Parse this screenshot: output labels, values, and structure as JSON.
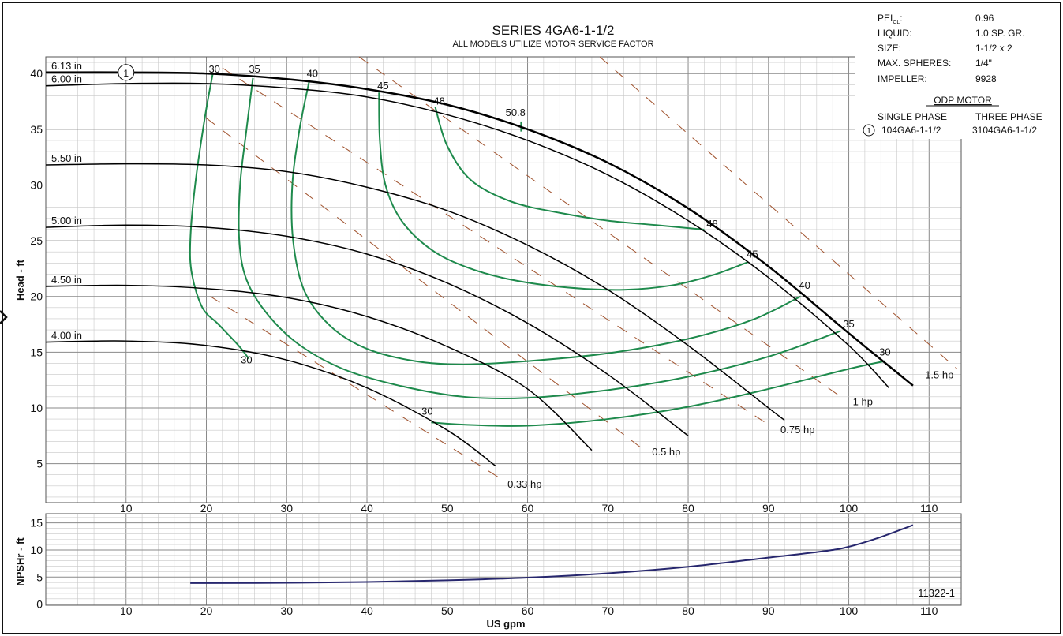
{
  "header": {
    "title": "SERIES 4GA6-1-1/2",
    "subtitle": "ALL MODELS UTILIZE MOTOR SERVICE FACTOR"
  },
  "specs": [
    {
      "label": "PEI",
      "label_sub": "CL",
      "label_suffix": ":",
      "value": "0.96"
    },
    {
      "label": "LIQUID:",
      "value": "1.0 SP. GR."
    },
    {
      "label": "SIZE:",
      "value": "1-1/2 x 2"
    },
    {
      "label": "MAX. SPHERES:",
      "value": "1/4\""
    },
    {
      "label": "IMPELLER:",
      "value": "9928"
    }
  ],
  "motor": {
    "heading": "ODP MOTOR",
    "single_label": "SINGLE PHASE",
    "three_label": "THREE PHASE",
    "marker": "1",
    "single_model": "104GA6-1-1/2",
    "three_model": "3104GA6-1-1/2"
  },
  "figure_number": "11322-1",
  "colors": {
    "head_curve": "#000000",
    "efficiency_curve": "#1e8a4c",
    "hp_line": "#a0522d",
    "npsh_curve": "#27276e",
    "grid_major": "#8a8a8a",
    "grid_minor": "#c8c8c8"
  },
  "chart_data": [
    {
      "type": "line",
      "title": "SERIES 4GA6-1-1/2",
      "xlabel": "US gpm",
      "ylabel": "Head - ft",
      "xlim": [
        0,
        114
      ],
      "ylim": [
        1.5,
        41.5
      ],
      "grid": true,
      "x_ticks": [
        10,
        20,
        30,
        40,
        50,
        60,
        70,
        80,
        90,
        100,
        110
      ],
      "y_ticks": [
        5,
        10,
        15,
        20,
        25,
        30,
        35,
        40
      ],
      "series": [
        {
          "name": "6.13 in",
          "kind": "head",
          "bold": true,
          "marker_label": "1",
          "marker_x": 10,
          "x": [
            0,
            10,
            20,
            30,
            40,
            50,
            60,
            70,
            80,
            90,
            100,
            108
          ],
          "y": [
            40.1,
            40.1,
            40.0,
            39.5,
            38.6,
            37.2,
            35.0,
            32.0,
            27.9,
            22.7,
            16.7,
            12.0
          ]
        },
        {
          "name": "6.00 in",
          "kind": "head",
          "x": [
            0,
            10,
            20,
            30,
            40,
            50,
            60,
            70,
            80,
            90,
            100,
            105
          ],
          "y": [
            38.9,
            39.1,
            39.1,
            38.7,
            37.9,
            36.3,
            34.0,
            30.9,
            26.8,
            21.7,
            15.6,
            11.8
          ]
        },
        {
          "name": "5.50 in",
          "kind": "head",
          "x": [
            0,
            10,
            20,
            30,
            40,
            50,
            60,
            70,
            80,
            90,
            92
          ],
          "y": [
            31.8,
            31.9,
            31.8,
            31.2,
            29.8,
            27.7,
            24.6,
            20.6,
            15.6,
            10.0,
            8.9
          ]
        },
        {
          "name": "5.00 in",
          "kind": "head",
          "x": [
            0,
            10,
            20,
            30,
            40,
            50,
            60,
            70,
            80
          ],
          "y": [
            26.2,
            26.4,
            26.2,
            25.4,
            23.8,
            21.2,
            17.6,
            13.0,
            7.5
          ]
        },
        {
          "name": "4.50 in",
          "kind": "head",
          "x": [
            0,
            10,
            20,
            30,
            40,
            50,
            60,
            68
          ],
          "y": [
            20.9,
            21.0,
            20.7,
            19.9,
            18.2,
            15.5,
            11.7,
            6.2
          ]
        },
        {
          "name": "4.00 in",
          "kind": "head",
          "x": [
            0,
            10,
            20,
            30,
            40,
            50,
            56
          ],
          "y": [
            15.9,
            16.0,
            15.6,
            14.3,
            11.8,
            8.0,
            4.8
          ]
        },
        {
          "name": "30",
          "kind": "efficiency",
          "label_points": [
            [
              21,
              40.1
            ],
            [
              25,
              14.0
            ]
          ],
          "x": [
            20.8,
            19.8,
            18.6,
            18.0,
            18.2,
            19.5,
            21.5,
            24.0,
            25.3
          ],
          "y": [
            40.0,
            36.0,
            30.0,
            25.0,
            22.0,
            19.0,
            17.5,
            15.6,
            14.4
          ]
        },
        {
          "name": "35",
          "kind": "efficiency",
          "label_points": [
            [
              26,
              40.1
            ],
            [
              100,
              17.2
            ]
          ],
          "x": [
            25.8,
            25.0,
            24.2,
            24.1,
            25.0,
            27.5,
            31.5,
            37.0,
            44.0,
            52.0,
            60.0,
            70.0,
            80.0,
            90.0,
            99.0
          ],
          "y": [
            39.6,
            35.0,
            30.0,
            25.0,
            21.5,
            18.5,
            15.7,
            13.5,
            12.0,
            11.0,
            10.9,
            11.6,
            12.8,
            14.6,
            16.9
          ]
        },
        {
          "name": "40",
          "kind": "efficiency",
          "label_points": [
            [
              33.2,
              39.7
            ],
            [
              94.5,
              20.7
            ]
          ],
          "x": [
            32.8,
            31.6,
            30.7,
            30.8,
            32.2,
            35.5,
            40.0,
            46.0,
            52.0,
            60.0,
            70.0,
            80.0,
            88.0,
            94.0
          ],
          "y": [
            39.3,
            35.0,
            30.0,
            25.0,
            20.5,
            17.3,
            15.3,
            14.2,
            13.9,
            14.2,
            14.9,
            16.2,
            17.9,
            20.0
          ]
        },
        {
          "name": "45",
          "kind": "efficiency",
          "label_points": [
            [
              42,
              38.6
            ],
            [
              88,
              23.5
            ]
          ],
          "x": [
            41.5,
            41.6,
            42.3,
            44.3,
            48.0,
            52.5,
            58.0,
            65.0,
            72.0,
            78.0,
            83.0,
            87.5
          ],
          "y": [
            38.3,
            34.0,
            30.0,
            26.8,
            24.2,
            22.6,
            21.5,
            20.8,
            20.6,
            21.0,
            21.9,
            23.1
          ]
        },
        {
          "name": "48",
          "kind": "efficiency",
          "label_points": [
            [
              49,
              37.2
            ],
            [
              83,
              26.2
            ]
          ],
          "x": [
            48.5,
            50.0,
            53.0,
            58.0,
            64.0,
            70.0,
            76.0,
            82.0
          ],
          "y": [
            37.0,
            33.5,
            30.4,
            28.5,
            27.5,
            26.8,
            26.4,
            26.0
          ]
        },
        {
          "name": "50.8",
          "kind": "efficiency",
          "label_points": [
            [
              58.5,
              36.2
            ]
          ],
          "x": [
            59.2,
            59.2
          ],
          "y": [
            35.7,
            34.8
          ]
        },
        {
          "name": "30",
          "kind": "efficiency",
          "label_points": [
            [
              47.5,
              9.4
            ],
            [
              104.5,
              14.7
            ]
          ],
          "x": [
            48.0,
            52.0,
            60.0,
            70.0,
            80.0,
            90.0,
            100.0,
            104.5
          ],
          "y": [
            8.7,
            8.5,
            8.4,
            9.0,
            10.1,
            11.7,
            13.5,
            14.2
          ]
        },
        {
          "name": "0.33 hp",
          "kind": "power",
          "label_points": [
            [
              57.5,
              3.2
            ]
          ],
          "x": [
            20.5,
            57.0
          ],
          "y": [
            20.0,
            3.5
          ]
        },
        {
          "name": "0.5 hp",
          "kind": "power",
          "label_points": [
            [
              75.5,
              6.1
            ]
          ],
          "x": [
            20.0,
            74.0
          ],
          "y": [
            36.0,
            6.5
          ]
        },
        {
          "name": "0.75 hp",
          "kind": "power",
          "label_points": [
            [
              91.5,
              8.1
            ]
          ],
          "x": [
            22.0,
            90.0
          ],
          "y": [
            40.5,
            8.5
          ]
        },
        {
          "name": "1 hp",
          "kind": "power",
          "label_points": [
            [
              100.5,
              10.6
            ]
          ],
          "x": [
            39.0,
            99.0
          ],
          "y": [
            41.5,
            11.0
          ]
        },
        {
          "name": "1.5 hp",
          "kind": "power",
          "label_points": [
            [
              109.5,
              13.0
            ]
          ],
          "x": [
            69.0,
            113.5
          ],
          "y": [
            41.5,
            13.5
          ]
        }
      ]
    },
    {
      "type": "line",
      "xlabel": "US gpm",
      "ylabel": "NPSHr - ft",
      "xlim": [
        0,
        114
      ],
      "ylim": [
        -0.2,
        16.7
      ],
      "grid": true,
      "x_ticks": [
        10,
        20,
        30,
        40,
        50,
        60,
        70,
        80,
        90,
        100,
        110
      ],
      "y_ticks": [
        0,
        5,
        10,
        15
      ],
      "series": [
        {
          "name": "NPSHr",
          "x": [
            18,
            20,
            30,
            40,
            50,
            60,
            70,
            80,
            90,
            97,
            100,
            104,
            108
          ],
          "y": [
            3.9,
            3.9,
            3.95,
            4.1,
            4.4,
            4.9,
            5.7,
            6.9,
            8.6,
            9.8,
            10.6,
            12.4,
            14.6
          ]
        }
      ]
    }
  ]
}
